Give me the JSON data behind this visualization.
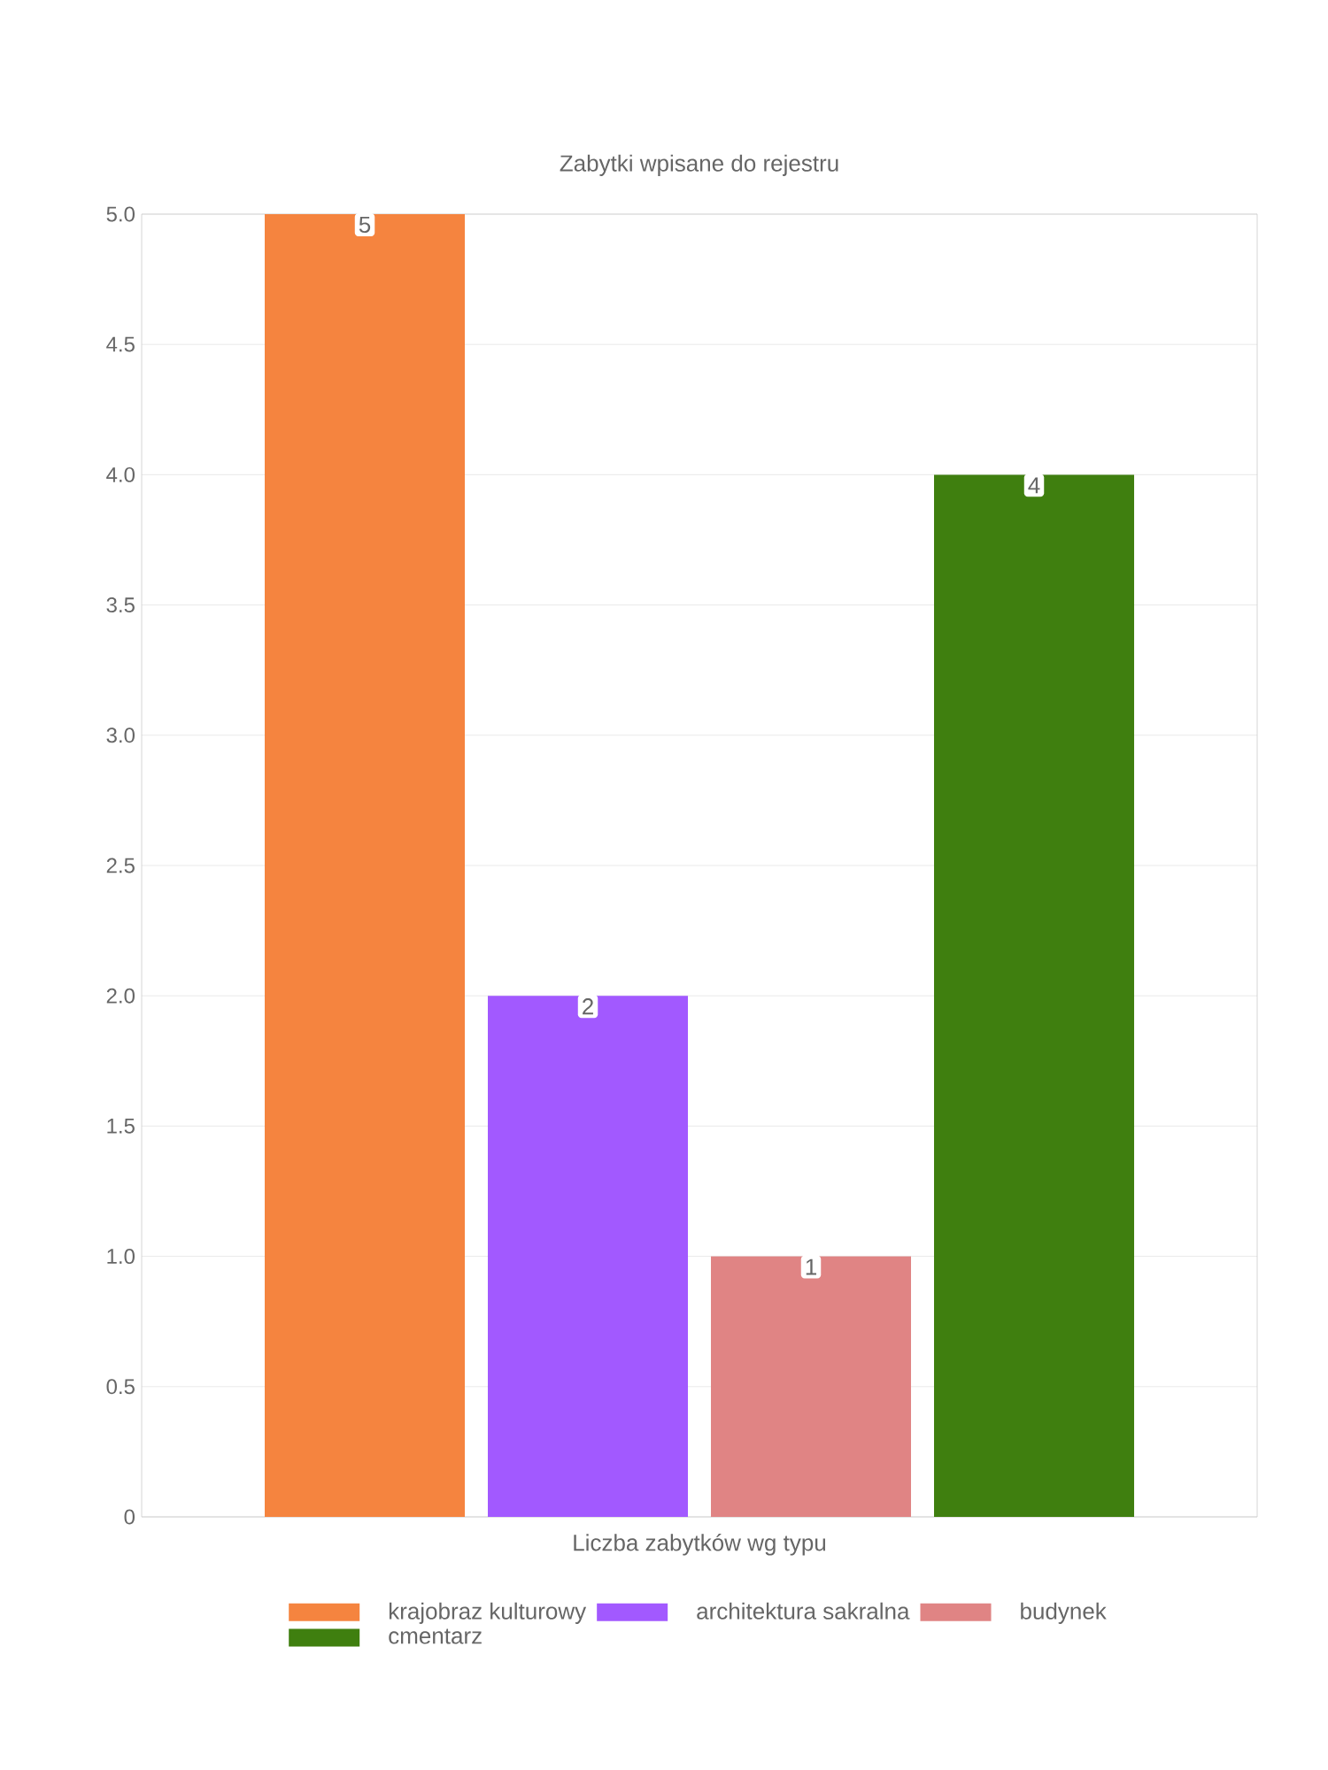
{
  "chart_data": {
    "type": "bar",
    "title": "Zabytki wpisane do rejestru",
    "xlabel": "Liczba zabytków wg typu",
    "categories": [
      null
    ],
    "series": [
      {
        "name": "krajobraz kulturowy",
        "color": "#f5843f",
        "values": [
          5
        ]
      },
      {
        "name": "architektura sakralna",
        "color": "#a259ff",
        "values": [
          2
        ]
      },
      {
        "name": "budynek",
        "color": "#e08484",
        "values": [
          1
        ]
      },
      {
        "name": "cmentarz",
        "color": "#3f7f0f",
        "values": [
          4
        ]
      }
    ],
    "ylim": [
      0,
      5
    ],
    "yticks": [
      0,
      {
        "value": 0.5,
        "label": "0.5"
      },
      {
        "value": 1,
        "label": "1.0"
      },
      {
        "value": 1.5,
        "label": "1.5"
      },
      {
        "value": 2,
        "label": "2.0"
      },
      {
        "value": 2.5,
        "label": "2.5"
      },
      {
        "value": 3,
        "label": "3.0"
      },
      {
        "value": 3.5,
        "label": "3.5"
      },
      {
        "value": 4,
        "label": "4.0"
      },
      {
        "value": 4.5,
        "label": "4.5"
      },
      {
        "value": 5,
        "label": "5.0"
      }
    ],
    "grid": "y",
    "legend": "bottom",
    "data_labels": true
  }
}
